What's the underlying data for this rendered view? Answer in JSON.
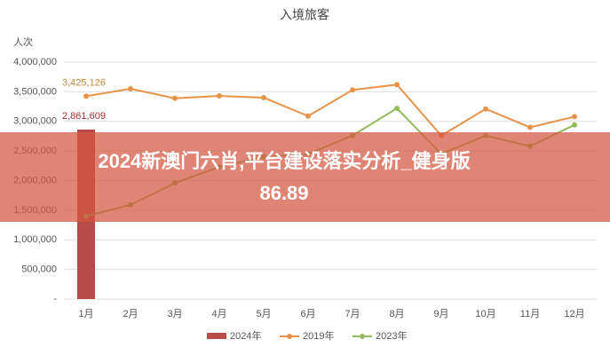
{
  "chart_data": {
    "type": "bar_line",
    "title": "入境旅客",
    "y_label": "人次",
    "categories": [
      "1月",
      "2月",
      "3月",
      "4月",
      "5月",
      "6月",
      "7月",
      "8月",
      "9月",
      "10月",
      "11月",
      "12月"
    ],
    "series": [
      {
        "name": "2024年",
        "type": "bar",
        "color": "#b84a47",
        "values": [
          2861609,
          null,
          null,
          null,
          null,
          null,
          null,
          null,
          null,
          null,
          null,
          null
        ],
        "value_labels": [
          "2,861,609",
          null,
          null,
          null,
          null,
          null,
          null,
          null,
          null,
          null,
          null,
          null
        ],
        "label_color": "#a0302c"
      },
      {
        "name": "2019年",
        "type": "line",
        "color": "#e8934a",
        "values": [
          3425126,
          3550000,
          3390000,
          3430000,
          3400000,
          3090000,
          3530000,
          3620000,
          2760000,
          3210000,
          2900000,
          3080000
        ],
        "value_labels": [
          "3,425,126",
          null,
          null,
          null,
          null,
          null,
          null,
          null,
          null,
          null,
          null,
          null
        ],
        "label_color": "#c08a3a"
      },
      {
        "name": "2023年",
        "type": "line",
        "color": "#92bb5c",
        "values": [
          1400000,
          1590000,
          1960000,
          2230000,
          2400000,
          2450000,
          2760000,
          3220000,
          2450000,
          2760000,
          2580000,
          2940000
        ]
      }
    ],
    "ylim": [
      0,
      4000000
    ],
    "yticks": [
      {
        "value": 0,
        "label": "-"
      },
      {
        "value": 500000,
        "label": "500,000"
      },
      {
        "value": 1000000,
        "label": "1,000,000"
      },
      {
        "value": 1500000,
        "label": "1,500,000"
      },
      {
        "value": 2000000,
        "label": "2,000,000"
      },
      {
        "value": 2500000,
        "label": "2,500,000"
      },
      {
        "value": 3000000,
        "label": "3,000,000"
      },
      {
        "value": 3500000,
        "label": "3,500,000"
      },
      {
        "value": 4000000,
        "label": "4,000,000"
      }
    ],
    "grid": true,
    "legend": "bottom"
  },
  "overlay": {
    "lines": [
      "2024新澳门六肖,平台建设落实分析_健身版",
      "86.89"
    ]
  }
}
